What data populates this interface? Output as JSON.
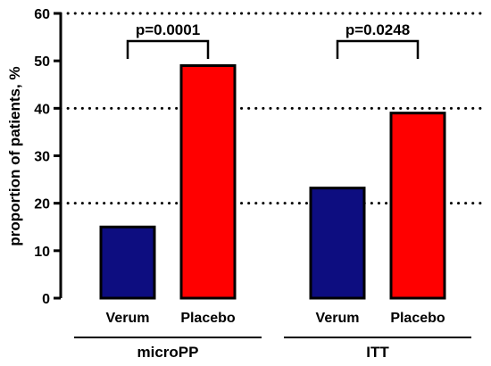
{
  "chart_data": {
    "type": "bar",
    "ylabel": "proportion of patients, %",
    "ylim": [
      0,
      60
    ],
    "yticks": [
      0,
      10,
      20,
      30,
      40,
      50,
      60
    ],
    "grid": "dotted horizontal at 20, 40, 60",
    "groups": [
      {
        "name": "microPP",
        "bars": [
          {
            "category": "Verum",
            "value": 15,
            "color": "#0d0d80"
          },
          {
            "category": "Placebo",
            "value": 49,
            "color": "#ff0000"
          }
        ],
        "annotation": "p=0.0001"
      },
      {
        "name": "ITT",
        "bars": [
          {
            "category": "Verum",
            "value": 23.2,
            "color": "#0d0d80"
          },
          {
            "category": "Placebo",
            "value": 39,
            "color": "#ff0000"
          }
        ],
        "annotation": "p=0.0248"
      }
    ]
  }
}
